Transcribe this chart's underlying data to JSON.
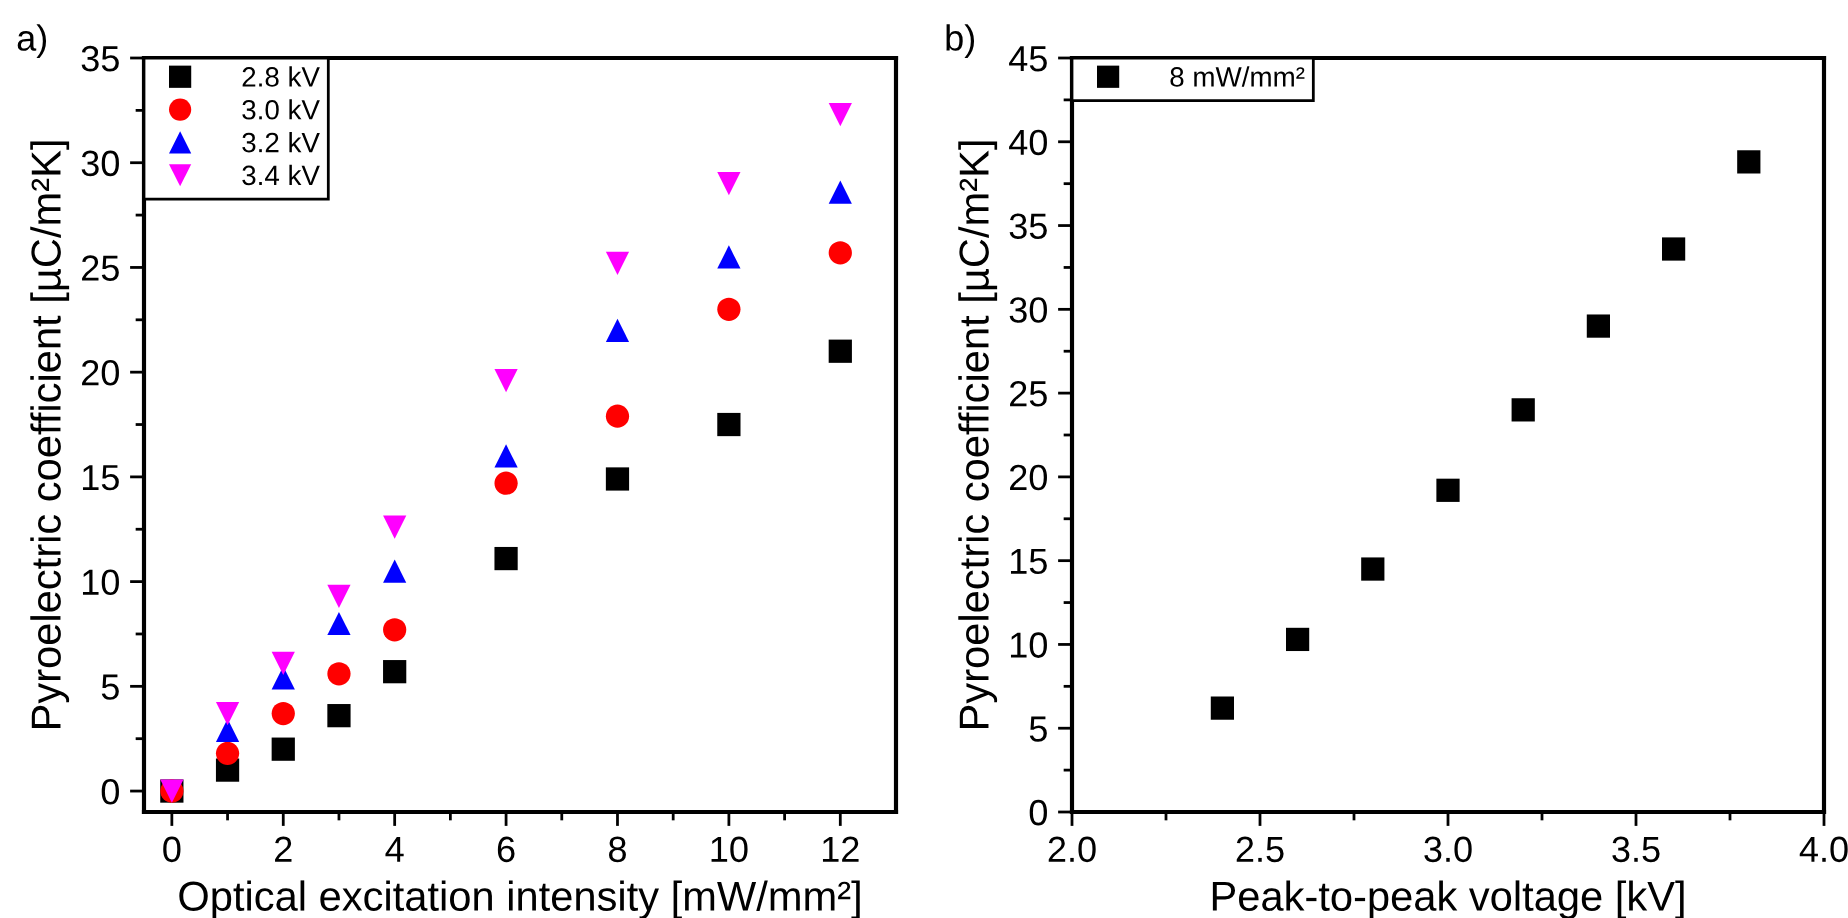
{
  "chart_data": [
    {
      "type": "scatter",
      "xlabel": "Optical excitation intensity [mW/mm²]",
      "ylabel": "Pyroelectric coefficient [µC/m²K]",
      "annotations": [
        "a)"
      ],
      "x": [
        0,
        1,
        2,
        3,
        4,
        6,
        8,
        10,
        12
      ],
      "series": [
        {
          "name": "2.8 kV",
          "color": "#000000",
          "marker": "square",
          "values": [
            0,
            1.0,
            2.0,
            3.6,
            5.7,
            11.1,
            14.9,
            17.5,
            21.0
          ]
        },
        {
          "name": "3.0 kV",
          "color": "#ff0000",
          "marker": "circle",
          "values": [
            0,
            1.8,
            3.7,
            5.6,
            7.7,
            14.7,
            17.9,
            23.0,
            25.7
          ]
        },
        {
          "name": "3.2 kV",
          "color": "#0000ff",
          "marker": "triangle",
          "values": [
            null,
            2.9,
            5.4,
            8.0,
            10.5,
            16.0,
            22.0,
            25.5,
            28.6
          ]
        },
        {
          "name": "3.4 kV",
          "color": "#ff00ff",
          "marker": "triangle_down",
          "values": [
            0,
            3.7,
            6.1,
            9.3,
            12.6,
            19.6,
            25.2,
            29.0,
            32.3
          ]
        }
      ],
      "xlim": [
        -0.5,
        13
      ],
      "ylim": [
        -1,
        35
      ],
      "xticks": [
        0,
        {
          "value": 1,
          "label": null
        },
        2,
        {
          "value": 3,
          "label": null
        },
        4,
        {
          "value": 5,
          "label": null
        },
        6,
        {
          "value": 7,
          "label": null
        },
        8,
        {
          "value": 9,
          "label": null
        },
        10,
        {
          "value": 11,
          "label": null
        },
        12
      ],
      "yticks": [
        0,
        {
          "value": 2.5,
          "label": null
        },
        5,
        {
          "value": 7.5,
          "label": null
        },
        10,
        {
          "value": 12.5,
          "label": null
        },
        15,
        {
          "value": 17.5,
          "label": null
        },
        20,
        {
          "value": 22.5,
          "label": null
        },
        25,
        {
          "value": 27.5,
          "label": null
        },
        30,
        {
          "value": 32.5,
          "label": null
        },
        35
      ],
      "grid": false,
      "legend": "top left"
    },
    {
      "type": "scatter",
      "xlabel": "Peak-to-peak voltage [kV]",
      "ylabel": "Pyroelectric coefficient [µC/m²K]",
      "annotations": [
        "b)"
      ],
      "x": [
        2.4,
        2.6,
        2.8,
        3.0,
        3.2,
        3.4,
        3.6,
        3.8
      ],
      "series": [
        {
          "name": "8 mW/mm²",
          "color": "#000000",
          "marker": "square",
          "values": [
            6.2,
            10.3,
            14.5,
            19.2,
            24.0,
            29.0,
            33.6,
            38.8
          ]
        }
      ],
      "xlim": [
        2.0,
        4.0
      ],
      "ylim": [
        0,
        45
      ],
      "xticks": [
        {
          "value": 2.0,
          "label": "2.0"
        },
        {
          "value": 2.25,
          "label": null
        },
        {
          "value": 2.5,
          "label": "2.5"
        },
        {
          "value": 2.75,
          "label": null
        },
        {
          "value": 3.0,
          "label": "3.0"
        },
        {
          "value": 3.25,
          "label": null
        },
        {
          "value": 3.5,
          "label": "3.5"
        },
        {
          "value": 3.75,
          "label": null
        },
        {
          "value": 4.0,
          "label": "4.0"
        }
      ],
      "yticks": [
        0,
        {
          "value": 2.5,
          "label": null
        },
        5,
        {
          "value": 7.5,
          "label": null
        },
        10,
        {
          "value": 12.5,
          "label": null
        },
        15,
        {
          "value": 17.5,
          "label": null
        },
        20,
        {
          "value": 22.5,
          "label": null
        },
        25,
        {
          "value": 27.5,
          "label": null
        },
        30,
        {
          "value": 32.5,
          "label": null
        },
        35,
        {
          "value": 37.5,
          "label": null
        },
        40,
        {
          "value": 42.5,
          "label": null
        },
        45
      ],
      "grid": false,
      "legend": "top left"
    }
  ]
}
